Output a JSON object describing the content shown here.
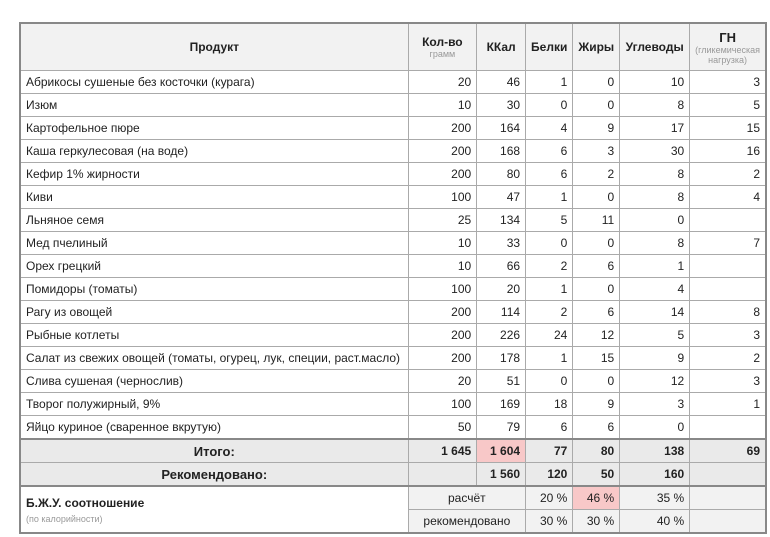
{
  "headers": {
    "product": "Продукт",
    "qty": "Кол-во",
    "qty_sub": "грамм",
    "kcal": "ККал",
    "protein": "Белки",
    "fat": "Жиры",
    "carbs": "Углеводы",
    "gl": "ГН",
    "gl_sub": "(гликемическая нагрузка)"
  },
  "rows": [
    [
      "Абрикосы сушеные без косточки (курага)",
      "20",
      "46",
      "1",
      "0",
      "10",
      "3"
    ],
    [
      "Изюм",
      "10",
      "30",
      "0",
      "0",
      "8",
      "5"
    ],
    [
      "Картофельное пюре",
      "200",
      "164",
      "4",
      "9",
      "17",
      "15"
    ],
    [
      "Каша геркулесовая (на воде)",
      "200",
      "168",
      "6",
      "3",
      "30",
      "16"
    ],
    [
      "Кефир 1% жирности",
      "200",
      "80",
      "6",
      "2",
      "8",
      "2"
    ],
    [
      "Киви",
      "100",
      "47",
      "1",
      "0",
      "8",
      "4"
    ],
    [
      "Льняное семя",
      "25",
      "134",
      "5",
      "11",
      "0",
      ""
    ],
    [
      "Мед пчелиный",
      "10",
      "33",
      "0",
      "0",
      "8",
      "7"
    ],
    [
      "Орех грецкий",
      "10",
      "66",
      "2",
      "6",
      "1",
      ""
    ],
    [
      "Помидоры (томаты)",
      "100",
      "20",
      "1",
      "0",
      "4",
      ""
    ],
    [
      "Рагу из овощей",
      "200",
      "114",
      "2",
      "6",
      "14",
      "8"
    ],
    [
      "Рыбные котлеты",
      "200",
      "226",
      "24",
      "12",
      "5",
      "3"
    ],
    [
      "Салат из свежих овощей (томаты, огурец, лук, специи, раст.масло)",
      "200",
      "178",
      "1",
      "15",
      "9",
      "2"
    ],
    [
      "Слива сушеная (чернослив)",
      "20",
      "51",
      "0",
      "0",
      "12",
      "3"
    ],
    [
      "Творог полужирный, 9%",
      "100",
      "169",
      "18",
      "9",
      "3",
      "1"
    ],
    [
      "Яйцо куриное (сваренное вкрутую)",
      "50",
      "79",
      "6",
      "6",
      "0",
      ""
    ]
  ],
  "total": {
    "label": "Итого:",
    "qty": "1 645",
    "kcal": "1 604",
    "protein": "77",
    "fat": "80",
    "carbs": "138",
    "gl": "69"
  },
  "recommended": {
    "label": "Рекомендовано:",
    "kcal": "1 560",
    "protein": "120",
    "fat": "50",
    "carbs": "160"
  },
  "bju": {
    "title": "Б.Ж.У. соотношение",
    "subtitle": "(по калорийности)",
    "calc": {
      "label": "расчёт",
      "protein": "20 %",
      "fat": "46 %",
      "carbs": "35 %"
    },
    "rec": {
      "label": "рекомендовано",
      "protein": "30 %",
      "fat": "30 %",
      "carbs": "40 %"
    }
  },
  "colors": {
    "highlight": "#f8c8c8",
    "header_bg": "#f2f2f2"
  }
}
